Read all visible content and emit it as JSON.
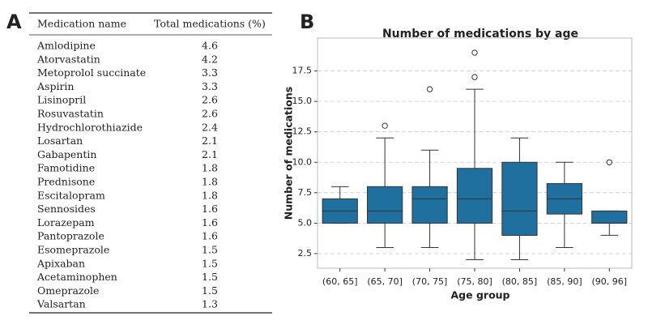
{
  "table": {
    "panel_label": "A",
    "columns": [
      "Medication name",
      "Total medications (%)"
    ],
    "rows": [
      [
        "Amlodipine",
        4.6
      ],
      [
        "Atorvastatin",
        4.2
      ],
      [
        "Metoprolol succinate",
        3.3
      ],
      [
        "Aspirin",
        3.3
      ],
      [
        "Lisinopril",
        2.6
      ],
      [
        "Rosuvastatin",
        2.6
      ],
      [
        "Hydrochlorothiazide",
        2.4
      ],
      [
        "Losartan",
        2.1
      ],
      [
        "Gabapentin",
        2.1
      ],
      [
        "Famotidine",
        1.8
      ],
      [
        "Prednisone",
        1.8
      ],
      [
        "Escitalopram",
        1.8
      ],
      [
        "Sennosides",
        1.6
      ],
      [
        "Lorazepam",
        1.6
      ],
      [
        "Pantoprazole",
        1.6
      ],
      [
        "Esomeprazole",
        1.5
      ],
      [
        "Apixaban",
        1.5
      ],
      [
        "Acetaminophen",
        1.5
      ],
      [
        "Omeprazole",
        1.5
      ],
      [
        "Valsartan",
        1.3
      ]
    ]
  },
  "chart_data": {
    "type": "box",
    "panel_label": "B",
    "title": "Number of medications by age",
    "x_label": "Age group",
    "y_label": "Number of medications",
    "categories": [
      "(60, 65]",
      "(65, 70]",
      "(70, 75]",
      "(75, 80]",
      "(80, 85]",
      "(85, 90]",
      "(90, 96]"
    ],
    "color": "#1f6f9f",
    "boxes": [
      {
        "low": 5,
        "q1": 5,
        "median": 6,
        "q3": 7,
        "high": 8,
        "outliers": []
      },
      {
        "low": 3,
        "q1": 5,
        "median": 6,
        "q3": 8,
        "high": 12,
        "outliers": [
          13
        ]
      },
      {
        "low": 3,
        "q1": 5,
        "median": 7,
        "q3": 8,
        "high": 11,
        "outliers": [
          16
        ]
      },
      {
        "low": 2,
        "q1": 5,
        "median": 7,
        "q3": 9.5,
        "high": 16,
        "outliers": [
          17,
          19
        ]
      },
      {
        "low": 2,
        "q1": 4,
        "median": 6,
        "q3": 10,
        "high": 12,
        "outliers": []
      },
      {
        "low": 3,
        "q1": 5.75,
        "median": 7,
        "q3": 8.25,
        "high": 10,
        "outliers": []
      },
      {
        "low": 4,
        "q1": 5,
        "median": 5,
        "q3": 6,
        "high": 6,
        "outliers": [
          10
        ]
      }
    ],
    "ylim": [
      1.3,
      20.2
    ],
    "yticks": [
      2.5,
      {
        "value": 5,
        "label": "5.0"
      },
      7.5,
      {
        "value": 10,
        "label": "10.0"
      },
      12.5,
      {
        "value": 15,
        "label": "15.0"
      },
      17.5
    ],
    "grid": true
  }
}
